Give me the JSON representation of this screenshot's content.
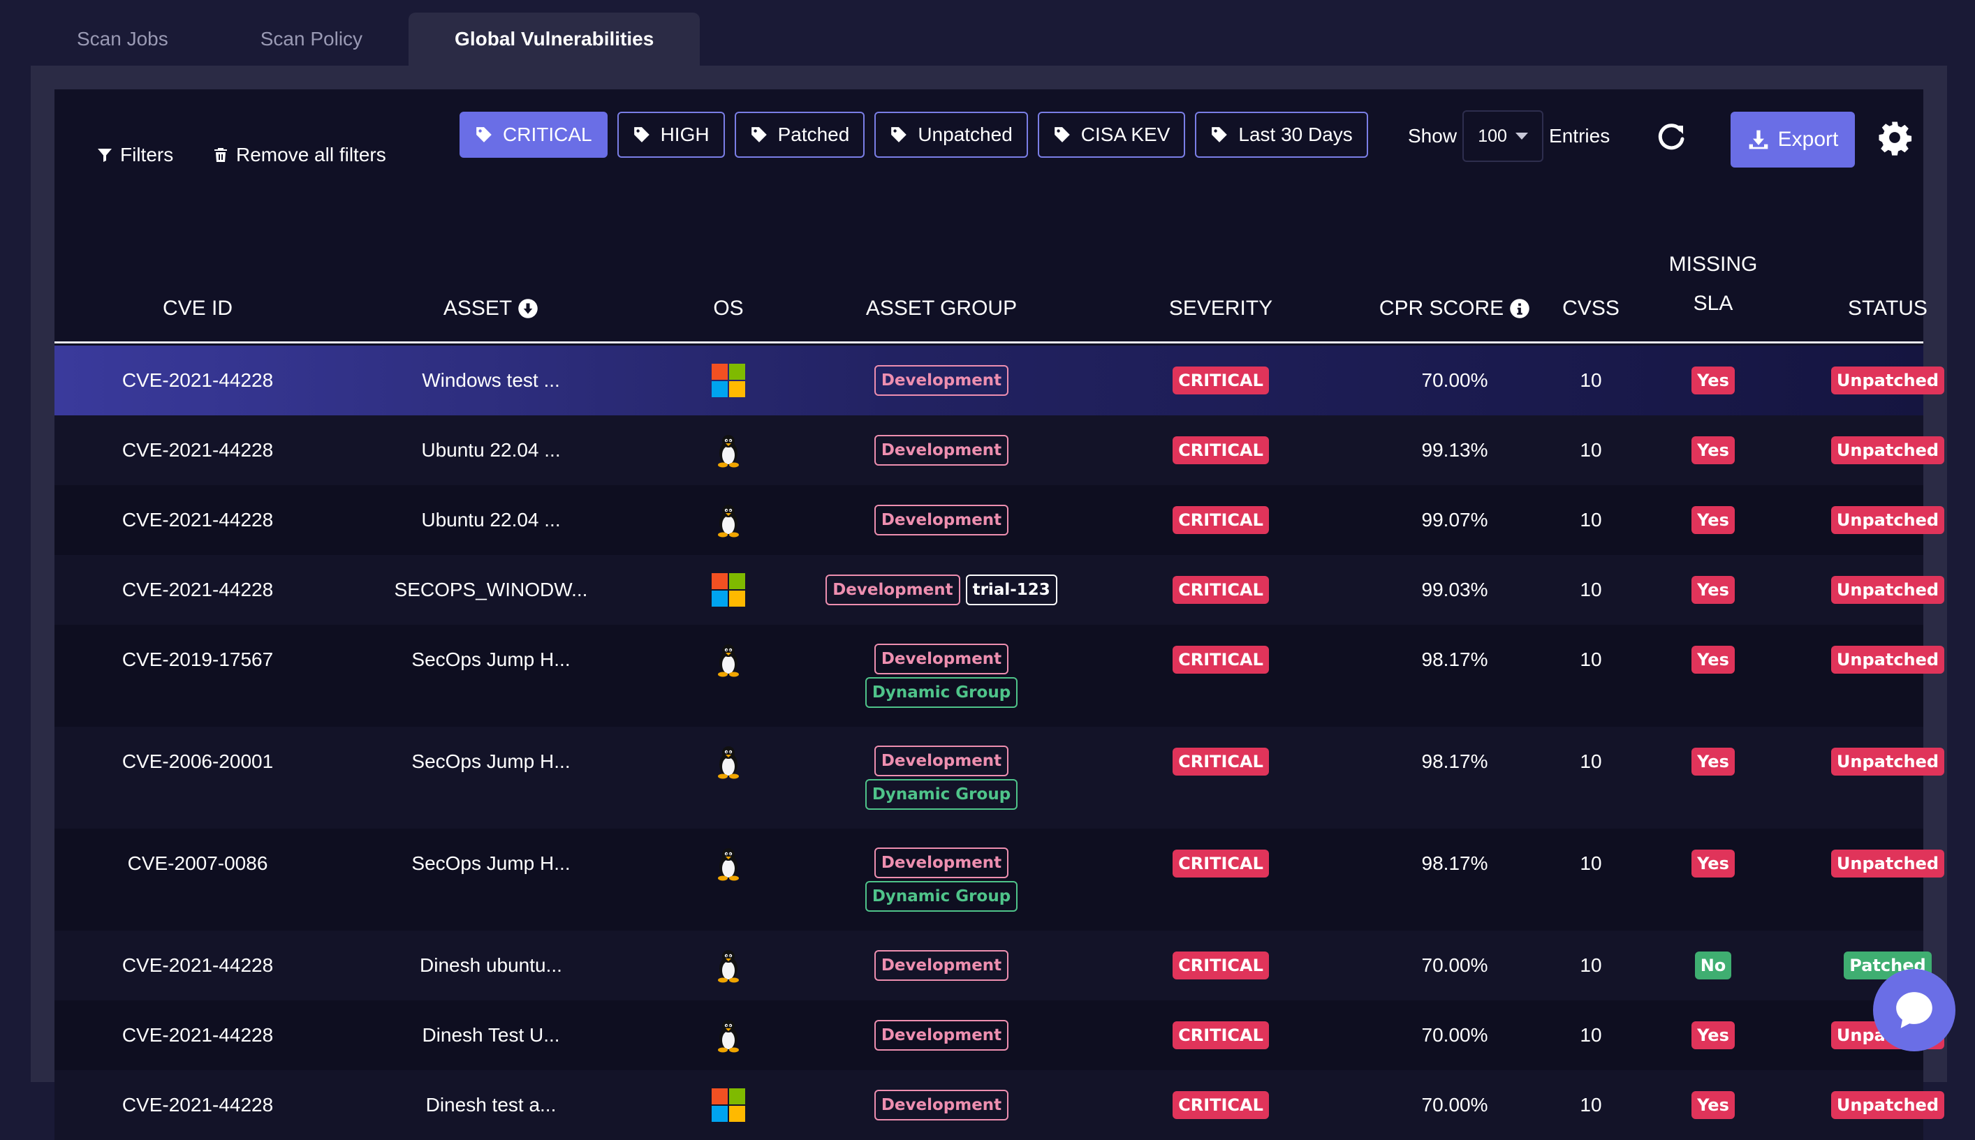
{
  "tabs": [
    {
      "label": "Scan Jobs",
      "active": false
    },
    {
      "label": "Scan Policy",
      "active": false
    },
    {
      "label": "Global Vulnerabilities",
      "active": true
    }
  ],
  "toolbar": {
    "filters_label": "Filters",
    "remove_filters_label": "Remove all filters",
    "chips": [
      {
        "label": "CRITICAL",
        "active": true
      },
      {
        "label": "HIGH",
        "active": false
      },
      {
        "label": "Patched",
        "active": false
      },
      {
        "label": "Unpatched",
        "active": false
      },
      {
        "label": "CISA KEV",
        "active": false
      },
      {
        "label": "Last 30 Days",
        "active": false
      }
    ],
    "show_label": "Show",
    "entries_value": "100",
    "entries_label": "Entries",
    "export_label": "Export"
  },
  "table": {
    "headers": {
      "cve_id": "CVE ID",
      "asset": "ASSET",
      "os": "OS",
      "asset_group": "ASSET GROUP",
      "severity": "SEVERITY",
      "cpr_score": "CPR SCORE",
      "cvss": "CVSS",
      "missing_sla_1": "MISSING",
      "missing_sla_2": "SLA",
      "status": "STATUS"
    },
    "rows": [
      {
        "cve": "CVE-2021-44228",
        "asset": "Windows test ...",
        "os": "windows-icon",
        "groups": [
          "Development"
        ],
        "severity": "CRITICAL",
        "cpr": "70.00%",
        "cvss": "10",
        "sla": "Yes",
        "status": "Unpatched"
      },
      {
        "cve": "CVE-2021-44228",
        "asset": "Ubuntu 22.04 ...",
        "os": "linux-icon",
        "groups": [
          "Development"
        ],
        "severity": "CRITICAL",
        "cpr": "99.13%",
        "cvss": "10",
        "sla": "Yes",
        "status": "Unpatched"
      },
      {
        "cve": "CVE-2021-44228",
        "asset": "Ubuntu 22.04 ...",
        "os": "linux-icon",
        "groups": [
          "Development"
        ],
        "severity": "CRITICAL",
        "cpr": "99.07%",
        "cvss": "10",
        "sla": "Yes",
        "status": "Unpatched"
      },
      {
        "cve": "CVE-2021-44228",
        "asset": "SECOPS_WINODW...",
        "os": "windows-icon",
        "groups": [
          "Development",
          "trial-123"
        ],
        "severity": "CRITICAL",
        "cpr": "99.03%",
        "cvss": "10",
        "sla": "Yes",
        "status": "Unpatched"
      },
      {
        "cve": "CVE-2019-17567",
        "asset": "SecOps Jump H...",
        "os": "linux-icon",
        "groups": [
          "Development",
          "Dynamic Group"
        ],
        "severity": "CRITICAL",
        "cpr": "98.17%",
        "cvss": "10",
        "sla": "Yes",
        "status": "Unpatched"
      },
      {
        "cve": "CVE-2006-20001",
        "asset": "SecOps Jump H...",
        "os": "linux-icon",
        "groups": [
          "Development",
          "Dynamic Group"
        ],
        "severity": "CRITICAL",
        "cpr": "98.17%",
        "cvss": "10",
        "sla": "Yes",
        "status": "Unpatched"
      },
      {
        "cve": "CVE-2007-0086",
        "asset": "SecOps Jump H...",
        "os": "linux-icon",
        "groups": [
          "Development",
          "Dynamic Group"
        ],
        "severity": "CRITICAL",
        "cpr": "98.17%",
        "cvss": "10",
        "sla": "Yes",
        "status": "Unpatched"
      },
      {
        "cve": "CVE-2021-44228",
        "asset": "Dinesh ubuntu...",
        "os": "linux-icon",
        "groups": [
          "Development"
        ],
        "severity": "CRITICAL",
        "cpr": "70.00%",
        "cvss": "10",
        "sla": "No",
        "status": "Patched"
      },
      {
        "cve": "CVE-2021-44228",
        "asset": "Dinesh Test U...",
        "os": "linux-icon",
        "groups": [
          "Development"
        ],
        "severity": "CRITICAL",
        "cpr": "70.00%",
        "cvss": "10",
        "sla": "Yes",
        "status": "Unpatched"
      },
      {
        "cve": "CVE-2021-44228",
        "asset": "Dinesh test a...",
        "os": "windows-icon",
        "groups": [
          "Development"
        ],
        "severity": "CRITICAL",
        "cpr": "70.00%",
        "cvss": "10",
        "sla": "Yes",
        "status": "Unpatched"
      }
    ]
  },
  "colors": {
    "accent": "#6a6ee6",
    "critical": "#e0345a",
    "patched": "#3fae71",
    "group_dev": "#ee8fb0",
    "group_dynamic": "#4fc48a"
  }
}
